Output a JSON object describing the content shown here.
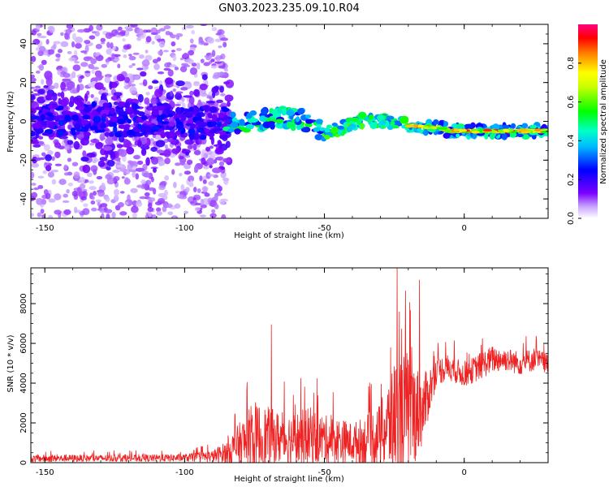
{
  "figure": {
    "title": "GN03.2023.235.09.10.R04"
  },
  "chart_data": [
    {
      "type": "heatmap",
      "xlabel": "Height of straight line (km)",
      "ylabel": "Frequency (Hz)",
      "xlim": [
        -155,
        30
      ],
      "ylim": [
        -50,
        50
      ],
      "x_ticks": [
        -150,
        -100,
        -50,
        0
      ],
      "y_ticks": [
        -40,
        -20,
        0,
        20,
        40
      ],
      "colorbar": {
        "label": "Normalized spectral amplitude",
        "range": [
          0.0,
          1.0
        ],
        "ticks": [
          0.0,
          0.2,
          0.4,
          0.6,
          0.8
        ],
        "colormap": [
          "#ffffff",
          "#7b00ff",
          "#0000ff",
          "#00ffff",
          "#00ff00",
          "#ffff00",
          "#ff8000",
          "#ff0000",
          "#ff0080"
        ]
      },
      "ridge": {
        "x": [
          -155,
          -140,
          -120,
          -100,
          -85,
          -75,
          -65,
          -55,
          -50,
          -45,
          -40,
          -35,
          -30,
          -25,
          -20,
          -15,
          -10,
          -5,
          0,
          10,
          20,
          30
        ],
        "frequency": [
          0,
          1,
          1,
          0,
          -1,
          0,
          2,
          0,
          -6,
          -4,
          -1,
          1,
          0,
          -1,
          -2,
          -3,
          -3,
          -5,
          -5,
          -5,
          -5,
          -5
        ]
      },
      "grid": false
    },
    {
      "type": "line",
      "xlabel": "Height of straight line (km)",
      "ylabel": "SNR (10 * v/v)",
      "xlim": [
        -155,
        30
      ],
      "ylim": [
        0,
        9800
      ],
      "x_ticks": [
        -150,
        -100,
        -50,
        0
      ],
      "y_ticks": [
        0,
        2000,
        4000,
        6000,
        8000
      ],
      "series": [
        {
          "color": "#ee2222",
          "x": [
            -155,
            -140,
            -120,
            -100,
            -90,
            -85,
            -80,
            -75,
            -70,
            -65,
            -60,
            -55,
            -50,
            -45,
            -40,
            -35,
            -30,
            -25,
            -20,
            -15,
            -10,
            -5,
            0,
            5,
            10,
            15,
            20,
            25,
            30
          ],
          "mean": [
            200,
            220,
            220,
            240,
            320,
            500,
            900,
            1200,
            1300,
            1200,
            1200,
            1300,
            1200,
            1100,
            1000,
            1100,
            1400,
            2200,
            2500,
            2600,
            4600,
            4800,
            4400,
            4800,
            5200,
            5200,
            5000,
            5200,
            5000
          ],
          "amplitude": [
            180,
            180,
            180,
            200,
            300,
            600,
            1200,
            1900,
            1500,
            1300,
            1400,
            1500,
            1200,
            1200,
            1000,
            1300,
            1600,
            3000,
            3200,
            1800,
            700,
            700,
            600,
            700,
            700,
            600,
            600,
            600,
            500
          ],
          "peaks": [
            {
              "x": -69,
              "y": 6950
            },
            {
              "x": -24,
              "y": 9800
            },
            {
              "x": -21,
              "y": 8650
            },
            {
              "x": -16,
              "y": 9200
            }
          ]
        }
      ],
      "grid": false
    }
  ]
}
